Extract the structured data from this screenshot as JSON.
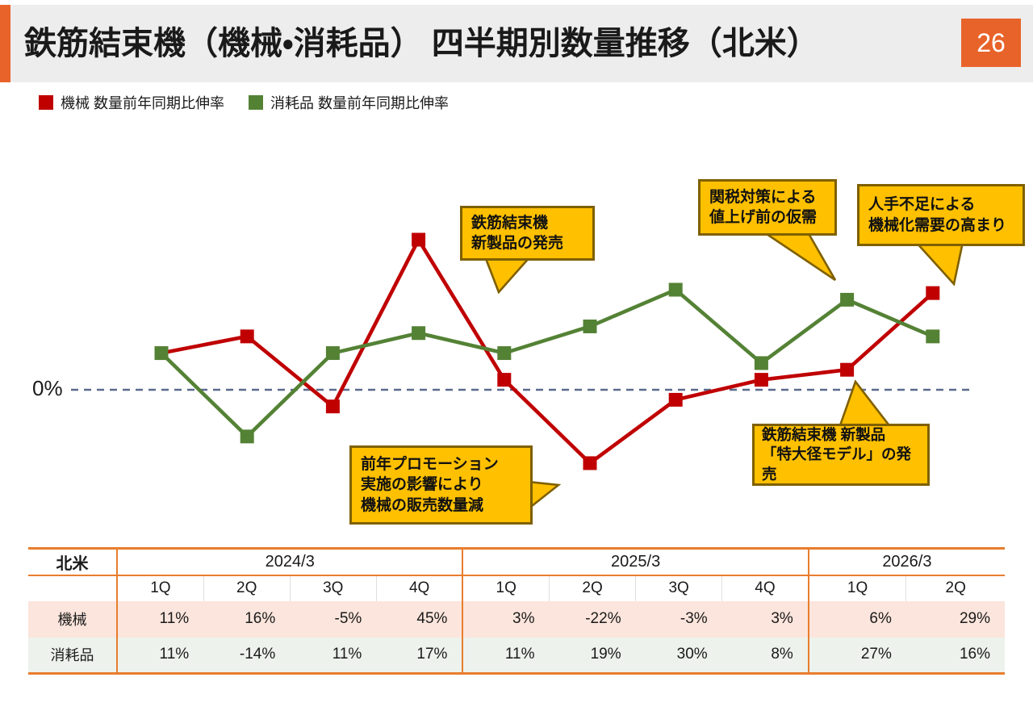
{
  "header": {
    "title": "鉄筋結束機（機械・消耗品） 四半期別数量推移（北米）",
    "page_number": "26"
  },
  "legend": [
    {
      "label": "機械 数量前年同期比伸率",
      "color": "#C00000"
    },
    {
      "label": "消耗品 数量前年同期比伸率",
      "color": "#548235"
    }
  ],
  "chart_data": {
    "type": "line",
    "title": "鉄筋結束機（機械・消耗品） 四半期別数量推移（北米）",
    "categories": [
      "2024/3 1Q",
      "2024/3 2Q",
      "2024/3 3Q",
      "2024/3 4Q",
      "2025/3 1Q",
      "2025/3 2Q",
      "2025/3 3Q",
      "2025/3 4Q",
      "2026/3 1Q",
      "2026/3 2Q"
    ],
    "series": [
      {
        "name": "機械 数量前年同期比伸率",
        "color": "#C00000",
        "marker": "square",
        "values": [
          11,
          16,
          -5,
          45,
          3,
          -22,
          -3,
          3,
          6,
          29
        ]
      },
      {
        "name": "消耗品 数量前年同期比伸率",
        "color": "#548235",
        "marker": "square",
        "values": [
          11,
          -14,
          11,
          17,
          11,
          19,
          30,
          8,
          27,
          16
        ]
      }
    ],
    "unit": "%",
    "ylim": [
      -30,
      50
    ],
    "baseline": {
      "value": 0,
      "label": "0%",
      "color": "#5A6B8C",
      "style": "dashed"
    },
    "grid": false,
    "legend_position": "top-left",
    "annotations": [
      "鉄筋結束機\n新製品の発売",
      "関税対策による\n値上げ前の仮需",
      "人手不足による\n機械化需要の高まり",
      "前年プロモーション\n実施の影響により\n機械の販売数量減",
      "鉄筋結束機 新製品\n「特大径モデル」の発売"
    ]
  },
  "table": {
    "region_label": "北米",
    "year_groups": [
      {
        "label": "2024/3",
        "quarters": [
          "1Q",
          "2Q",
          "3Q",
          "4Q"
        ]
      },
      {
        "label": "2025/3",
        "quarters": [
          "1Q",
          "2Q",
          "3Q",
          "4Q"
        ]
      },
      {
        "label": "2026/3",
        "quarters": [
          "1Q",
          "2Q"
        ]
      }
    ],
    "rows": [
      {
        "label": "機械",
        "values": [
          "11%",
          "16%",
          "-5%",
          "45%",
          "3%",
          "-22%",
          "-3%",
          "3%",
          "6%",
          "29%"
        ]
      },
      {
        "label": "消耗品",
        "values": [
          "11%",
          "-14%",
          "11%",
          "17%",
          "11%",
          "19%",
          "30%",
          "8%",
          "27%",
          "16%"
        ]
      }
    ]
  },
  "colors": {
    "accent_orange": "#E8632A",
    "table_border_orange": "#E87D2E",
    "machines_red": "#C00000",
    "consumables_green": "#548235",
    "baseline_gray_blue": "#5A6B8C",
    "callout_fill": "#FFC000",
    "callout_border": "#7F6000",
    "machines_row_bg": "#FBE5DC",
    "consumables_row_bg": "#EDF2EC",
    "header_bg": "#EDEDED"
  }
}
